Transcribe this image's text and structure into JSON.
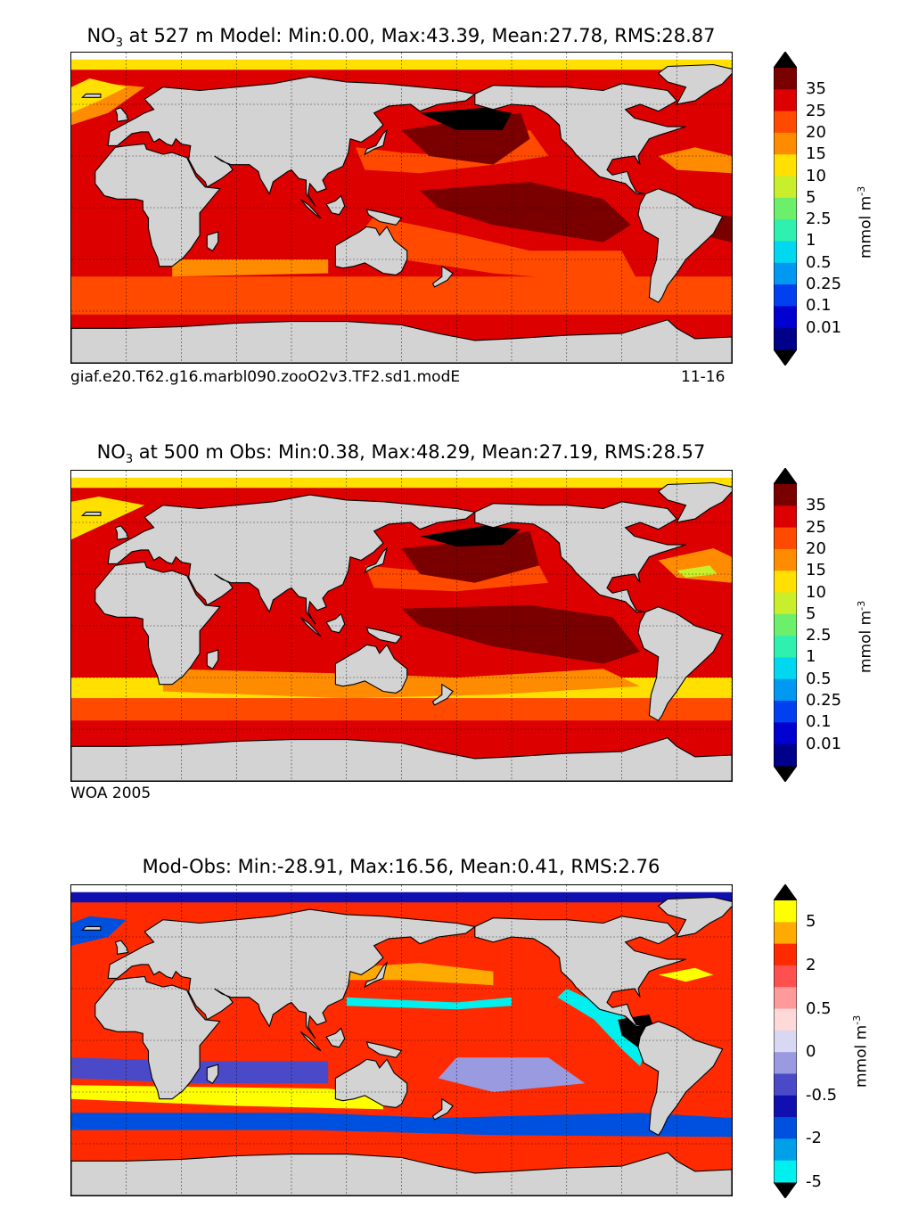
{
  "panels": [
    {
      "title_species": "NO",
      "title_sub": "3",
      "title_rest": " at 527 m Model: Min:0.00, Max:43.39, Mean:27.78, RMS:28.87",
      "footer_left": "giaf.e20.T62.g16.marbl090.zooO2v3.TF2.sd1.modE",
      "footer_right": "11-16",
      "colorbar": {
        "labels": [
          "35",
          "25",
          "20",
          "15",
          "10",
          "5",
          "2.5",
          "1",
          "0.5",
          "0.25",
          "0.1",
          "0.01"
        ],
        "colors": [
          "#7a0000",
          "#dd0000",
          "#ff4a00",
          "#ff8c00",
          "#ffe000",
          "#c8ee2c",
          "#6cf06c",
          "#30f0b0",
          "#00d8f0",
          "#0098f0",
          "#0040f0",
          "#0000d0",
          "#00008a"
        ],
        "units": "mmol m",
        "units_sup": "-3"
      }
    },
    {
      "title_species": "NO",
      "title_sub": "3",
      "title_rest": " at 500 m Obs: Min:0.38, Max:48.29, Mean:27.19, RMS:28.57",
      "footer_left": "WOA 2005",
      "footer_right": "",
      "colorbar": {
        "labels": [
          "35",
          "25",
          "20",
          "15",
          "10",
          "5",
          "2.5",
          "1",
          "0.5",
          "0.25",
          "0.1",
          "0.01"
        ],
        "colors": [
          "#7a0000",
          "#dd0000",
          "#ff4a00",
          "#ff8c00",
          "#ffe000",
          "#c8ee2c",
          "#6cf06c",
          "#30f0b0",
          "#00d8f0",
          "#0098f0",
          "#0040f0",
          "#0000d0",
          "#00008a"
        ],
        "units": "mmol m",
        "units_sup": "-3"
      }
    },
    {
      "title_species": "",
      "title_sub": "",
      "title_rest": "Mod-Obs: Min:-28.91, Max:16.56, Mean:0.41, RMS:2.76",
      "footer_left": "",
      "footer_right": "",
      "colorbar": {
        "labels": [
          "5",
          "2",
          "0.5",
          "0",
          "-0.5",
          "-2",
          "-5"
        ],
        "colors": [
          "#ffff00",
          "#ffaa00",
          "#ff2a00",
          "#ff5050",
          "#ff9a9a",
          "#ffd8d8",
          "#d8d8f4",
          "#9a9ae0",
          "#4a4ac8",
          "#1010b0",
          "#0050e0",
          "#00a0e8",
          "#00f0f0"
        ],
        "units": "mmol m",
        "units_sup": "-3"
      }
    }
  ]
}
